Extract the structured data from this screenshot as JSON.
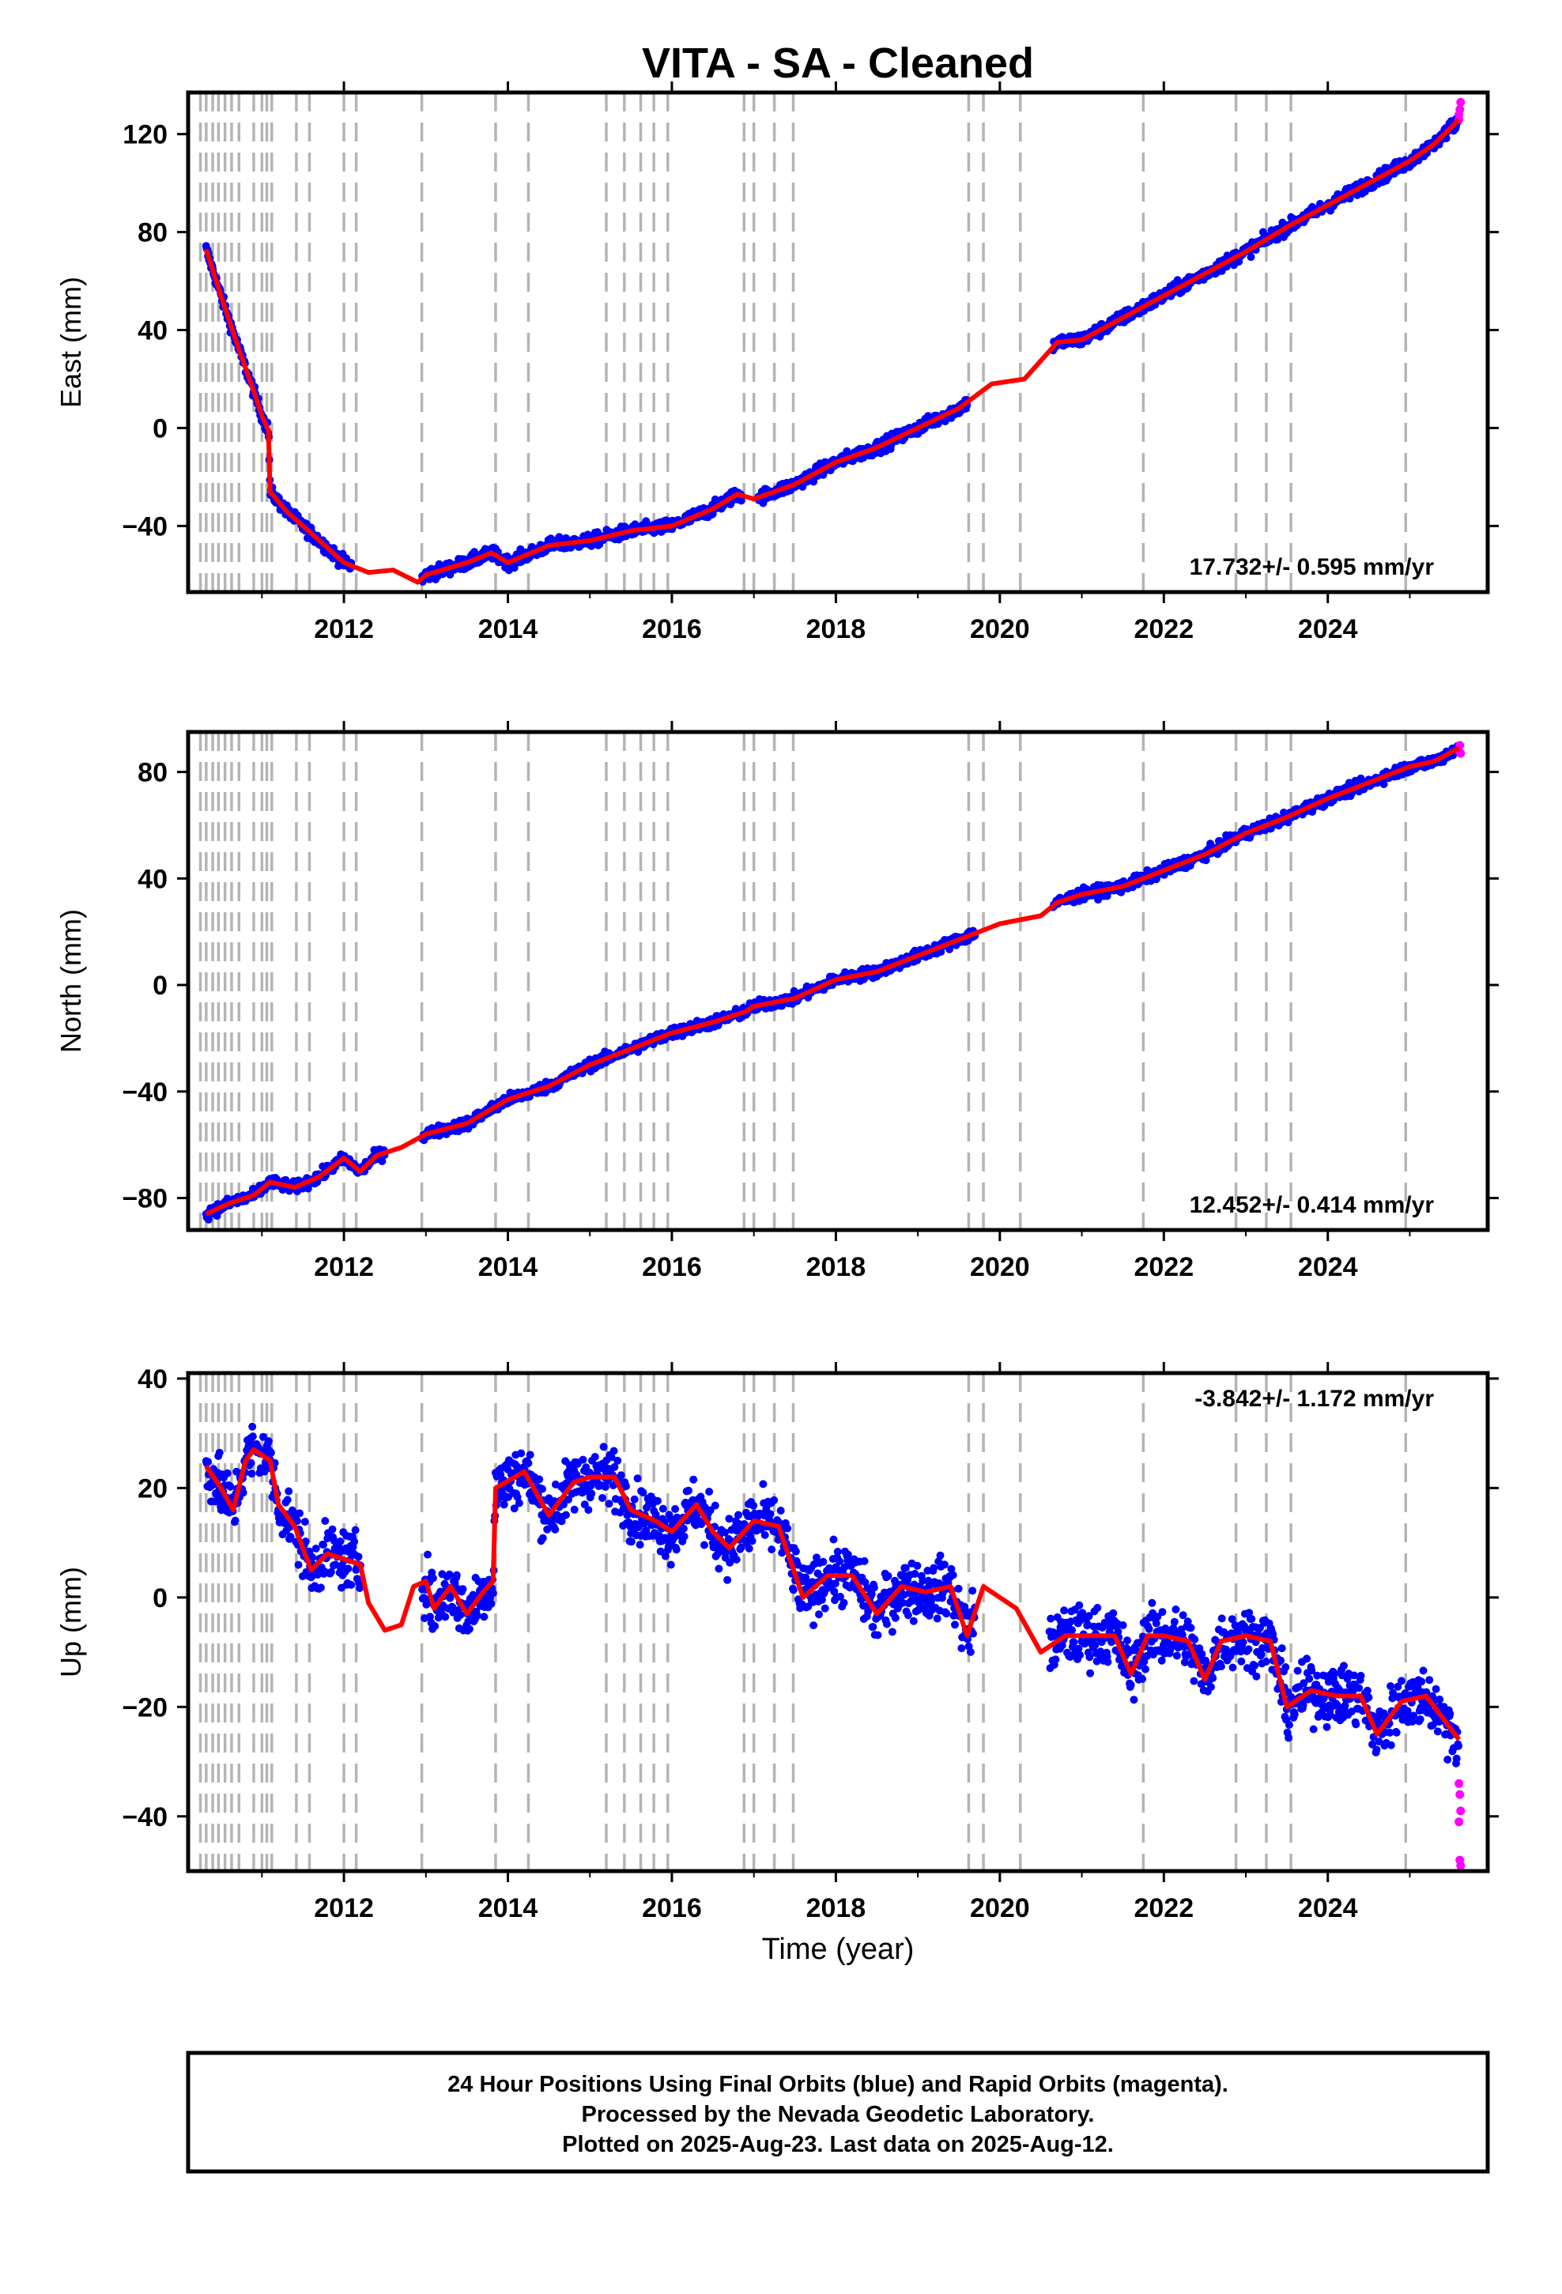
{
  "figure": {
    "title": "VITA  - SA - Cleaned",
    "xlabel": "Time (year)",
    "footer": [
      "24 Hour Positions Using Final Orbits (blue) and Rapid Orbits (magenta).",
      "Processed by the Nevada Geodetic Laboratory.",
      "Plotted on 2025-Aug-23. Last data on 2025-Aug-12."
    ],
    "colors": {
      "final": "#0000ff",
      "rapid": "#ff00ff",
      "model": "#ff0000",
      "steps": "#b4b4b4"
    }
  },
  "chart_data": [
    {
      "type": "scatter",
      "name": "east",
      "ylabel": "East (mm)",
      "rate": "17.732+/- 0.595 mm/yr",
      "xlim": [
        2010.1,
        2025.95
      ],
      "ylim": [
        -67,
        137
      ],
      "yticks": [
        -40,
        0,
        40,
        80,
        120
      ],
      "xticks": [
        2012,
        2014,
        2016,
        2018,
        2020,
        2022,
        2024
      ],
      "model": [
        [
          2010.32,
          73
        ],
        [
          2010.5,
          54
        ],
        [
          2010.7,
          34
        ],
        [
          2010.9,
          15
        ],
        [
          2011.0,
          5
        ],
        [
          2011.08,
          -1
        ],
        [
          2011.1,
          -26
        ],
        [
          2011.3,
          -34
        ],
        [
          2011.5,
          -40
        ],
        [
          2011.7,
          -46
        ],
        [
          2011.9,
          -52
        ],
        [
          2012.0,
          -55
        ],
        [
          2012.3,
          -59
        ],
        [
          2012.6,
          -58
        ],
        [
          2012.9,
          -63
        ],
        [
          2013.0,
          -60
        ],
        [
          2013.5,
          -55
        ],
        [
          2013.8,
          -51
        ],
        [
          2014.0,
          -55
        ],
        [
          2014.5,
          -48
        ],
        [
          2015.0,
          -46
        ],
        [
          2015.5,
          -42
        ],
        [
          2016.0,
          -40
        ],
        [
          2016.5,
          -33
        ],
        [
          2016.8,
          -27
        ],
        [
          2017.0,
          -29
        ],
        [
          2017.5,
          -23
        ],
        [
          2018.0,
          -14
        ],
        [
          2018.5,
          -8
        ],
        [
          2019.0,
          0
        ],
        [
          2019.5,
          8
        ],
        [
          2019.9,
          18
        ],
        [
          2020.3,
          20
        ],
        [
          2020.7,
          35
        ],
        [
          2021.0,
          36
        ],
        [
          2021.5,
          45
        ],
        [
          2022.0,
          54
        ],
        [
          2022.5,
          63
        ],
        [
          2023.0,
          72
        ],
        [
          2023.5,
          82
        ],
        [
          2024.0,
          91
        ],
        [
          2024.5,
          100
        ],
        [
          2025.0,
          109
        ],
        [
          2025.3,
          116
        ],
        [
          2025.6,
          126
        ]
      ],
      "gaps": [
        [
          2012.1,
          2012.95
        ],
        [
          2016.85,
          2017.05
        ],
        [
          2019.6,
          2020.65
        ]
      ],
      "noise": 2.5,
      "rapid": [
        [
          2025.6,
          126
        ],
        [
          2025.61,
          130
        ],
        [
          2025.62,
          133
        ],
        [
          2025.6,
          128
        ]
      ]
    },
    {
      "type": "scatter",
      "name": "north",
      "ylabel": "North (mm)",
      "rate": "12.452+/- 0.414 mm/yr",
      "xlim": [
        2010.1,
        2025.95
      ],
      "ylim": [
        -92,
        95
      ],
      "yticks": [
        -80,
        -40,
        0,
        40,
        80
      ],
      "xticks": [
        2012,
        2014,
        2016,
        2018,
        2020,
        2022,
        2024
      ],
      "model": [
        [
          2010.32,
          -86
        ],
        [
          2010.6,
          -82
        ],
        [
          2010.9,
          -79
        ],
        [
          2011.1,
          -74
        ],
        [
          2011.4,
          -76
        ],
        [
          2011.7,
          -72
        ],
        [
          2012.0,
          -65
        ],
        [
          2012.2,
          -70
        ],
        [
          2012.4,
          -64
        ],
        [
          2012.7,
          -61
        ],
        [
          2013.0,
          -56
        ],
        [
          2013.5,
          -52
        ],
        [
          2014.0,
          -43
        ],
        [
          2014.5,
          -38
        ],
        [
          2015.0,
          -30
        ],
        [
          2015.5,
          -24
        ],
        [
          2016.0,
          -18
        ],
        [
          2016.5,
          -14
        ],
        [
          2016.9,
          -10
        ],
        [
          2017.0,
          -8
        ],
        [
          2017.5,
          -5
        ],
        [
          2018.0,
          2
        ],
        [
          2018.5,
          5
        ],
        [
          2019.0,
          11
        ],
        [
          2019.5,
          17
        ],
        [
          2020.0,
          23
        ],
        [
          2020.5,
          26
        ],
        [
          2020.7,
          31
        ],
        [
          2021.0,
          34
        ],
        [
          2021.5,
          37
        ],
        [
          2022.0,
          43
        ],
        [
          2022.5,
          49
        ],
        [
          2023.0,
          57
        ],
        [
          2023.5,
          63
        ],
        [
          2024.0,
          70
        ],
        [
          2024.5,
          76
        ],
        [
          2025.0,
          82
        ],
        [
          2025.3,
          84
        ],
        [
          2025.6,
          89
        ]
      ],
      "gaps": [
        [
          2012.5,
          2012.95
        ],
        [
          2019.7,
          2020.65
        ]
      ],
      "noise": 2.0,
      "rapid": [
        [
          2025.6,
          88
        ],
        [
          2025.61,
          90
        ],
        [
          2025.62,
          87
        ]
      ]
    },
    {
      "type": "scatter",
      "name": "up",
      "ylabel": "Up (mm)",
      "rate": "-3.842+/- 1.172 mm/yr",
      "xlim": [
        2010.1,
        2025.95
      ],
      "ylim": [
        -50,
        41
      ],
      "yticks": [
        -40,
        -20,
        0,
        20,
        40
      ],
      "xticks": [
        2012,
        2014,
        2016,
        2018,
        2020,
        2022,
        2024
      ],
      "model": [
        [
          2010.32,
          24
        ],
        [
          2010.5,
          20
        ],
        [
          2010.65,
          16
        ],
        [
          2010.8,
          25
        ],
        [
          2010.9,
          27
        ],
        [
          2011.1,
          25
        ],
        [
          2011.2,
          17
        ],
        [
          2011.4,
          13
        ],
        [
          2011.6,
          5
        ],
        [
          2011.8,
          8
        ],
        [
          2012.0,
          7
        ],
        [
          2012.2,
          6
        ],
        [
          2012.3,
          -1
        ],
        [
          2012.5,
          -6
        ],
        [
          2012.7,
          -5
        ],
        [
          2012.85,
          2
        ],
        [
          2013.0,
          3
        ],
        [
          2013.1,
          -2
        ],
        [
          2013.3,
          2
        ],
        [
          2013.5,
          -3
        ],
        [
          2013.7,
          1
        ],
        [
          2013.82,
          3
        ],
        [
          2013.85,
          20
        ],
        [
          2014.2,
          23
        ],
        [
          2014.5,
          15
        ],
        [
          2014.8,
          21
        ],
        [
          2015.0,
          22
        ],
        [
          2015.3,
          22
        ],
        [
          2015.5,
          16
        ],
        [
          2015.8,
          14
        ],
        [
          2016.0,
          12
        ],
        [
          2016.3,
          17
        ],
        [
          2016.5,
          12
        ],
        [
          2016.7,
          9
        ],
        [
          2017.0,
          14
        ],
        [
          2017.3,
          13
        ],
        [
          2017.6,
          0
        ],
        [
          2017.9,
          4
        ],
        [
          2018.2,
          4
        ],
        [
          2018.5,
          -3
        ],
        [
          2018.8,
          2
        ],
        [
          2019.1,
          1
        ],
        [
          2019.4,
          2
        ],
        [
          2019.6,
          -7
        ],
        [
          2019.8,
          2
        ],
        [
          2020.2,
          -2
        ],
        [
          2020.5,
          -10
        ],
        [
          2020.8,
          -7
        ],
        [
          2021.1,
          -7
        ],
        [
          2021.4,
          -7
        ],
        [
          2021.6,
          -14
        ],
        [
          2021.8,
          -7
        ],
        [
          2022.0,
          -7
        ],
        [
          2022.3,
          -8
        ],
        [
          2022.5,
          -15
        ],
        [
          2022.7,
          -8
        ],
        [
          2023.0,
          -7
        ],
        [
          2023.3,
          -8
        ],
        [
          2023.5,
          -20
        ],
        [
          2023.8,
          -17
        ],
        [
          2024.1,
          -18
        ],
        [
          2024.4,
          -18
        ],
        [
          2024.6,
          -25
        ],
        [
          2024.9,
          -19
        ],
        [
          2025.2,
          -18
        ],
        [
          2025.4,
          -22
        ],
        [
          2025.6,
          -26
        ]
      ],
      "gaps": [
        [
          2012.2,
          2012.95
        ],
        [
          2019.7,
          2020.6
        ]
      ],
      "noise": 5.0,
      "rapid": [
        [
          2025.6,
          -34
        ],
        [
          2025.61,
          -36
        ],
        [
          2025.62,
          -39
        ],
        [
          2025.6,
          -41
        ],
        [
          2025.61,
          -48
        ],
        [
          2025.62,
          -49
        ]
      ]
    }
  ],
  "steps": [
    2010.25,
    2010.32,
    2010.4,
    2010.47,
    2010.55,
    2010.63,
    2010.72,
    2010.9,
    2011.0,
    2011.06,
    2011.12,
    2011.42,
    2011.58,
    2012.0,
    2012.15,
    2012.95,
    2013.85,
    2014.25,
    2015.2,
    2015.42,
    2015.62,
    2015.78,
    2015.95,
    2016.88,
    2017.0,
    2017.25,
    2017.48,
    2019.62,
    2019.8,
    2020.25,
    2021.75,
    2022.88,
    2023.25,
    2023.55,
    2024.95
  ]
}
